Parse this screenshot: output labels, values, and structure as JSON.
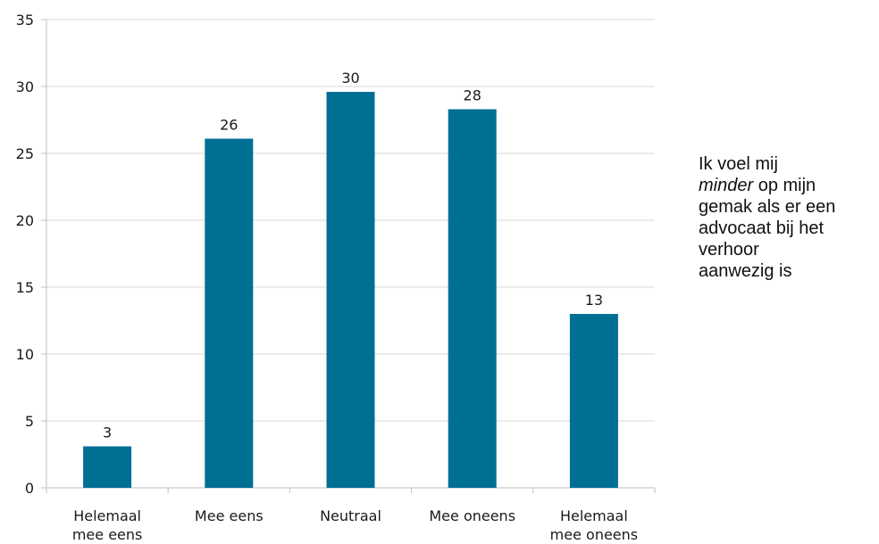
{
  "chart_data": {
    "type": "bar",
    "categories": [
      [
        "Helemaal",
        "mee eens"
      ],
      [
        "Mee eens"
      ],
      [
        "Neutraal"
      ],
      [
        "Mee oneens"
      ],
      [
        "Helemaal",
        "mee oneens"
      ]
    ],
    "values": [
      3.1,
      26.1,
      29.6,
      28.3,
      13.0
    ],
    "data_labels": [
      "3",
      "26",
      "30",
      "28",
      "13"
    ],
    "yticks": [
      "0",
      "5",
      "10",
      "15",
      "20",
      "25",
      "30",
      "35"
    ],
    "ylim": [
      0,
      35
    ],
    "grid": true,
    "bar_color": "#006f94",
    "legend": {
      "line1": "Ik voel mij",
      "italic_word": "minder",
      "line2_rest": " op mijn",
      "line3": "gemak als er een",
      "line4": "advocaat bij het",
      "line5": "verhoor",
      "line6": "aanwezig is"
    }
  }
}
